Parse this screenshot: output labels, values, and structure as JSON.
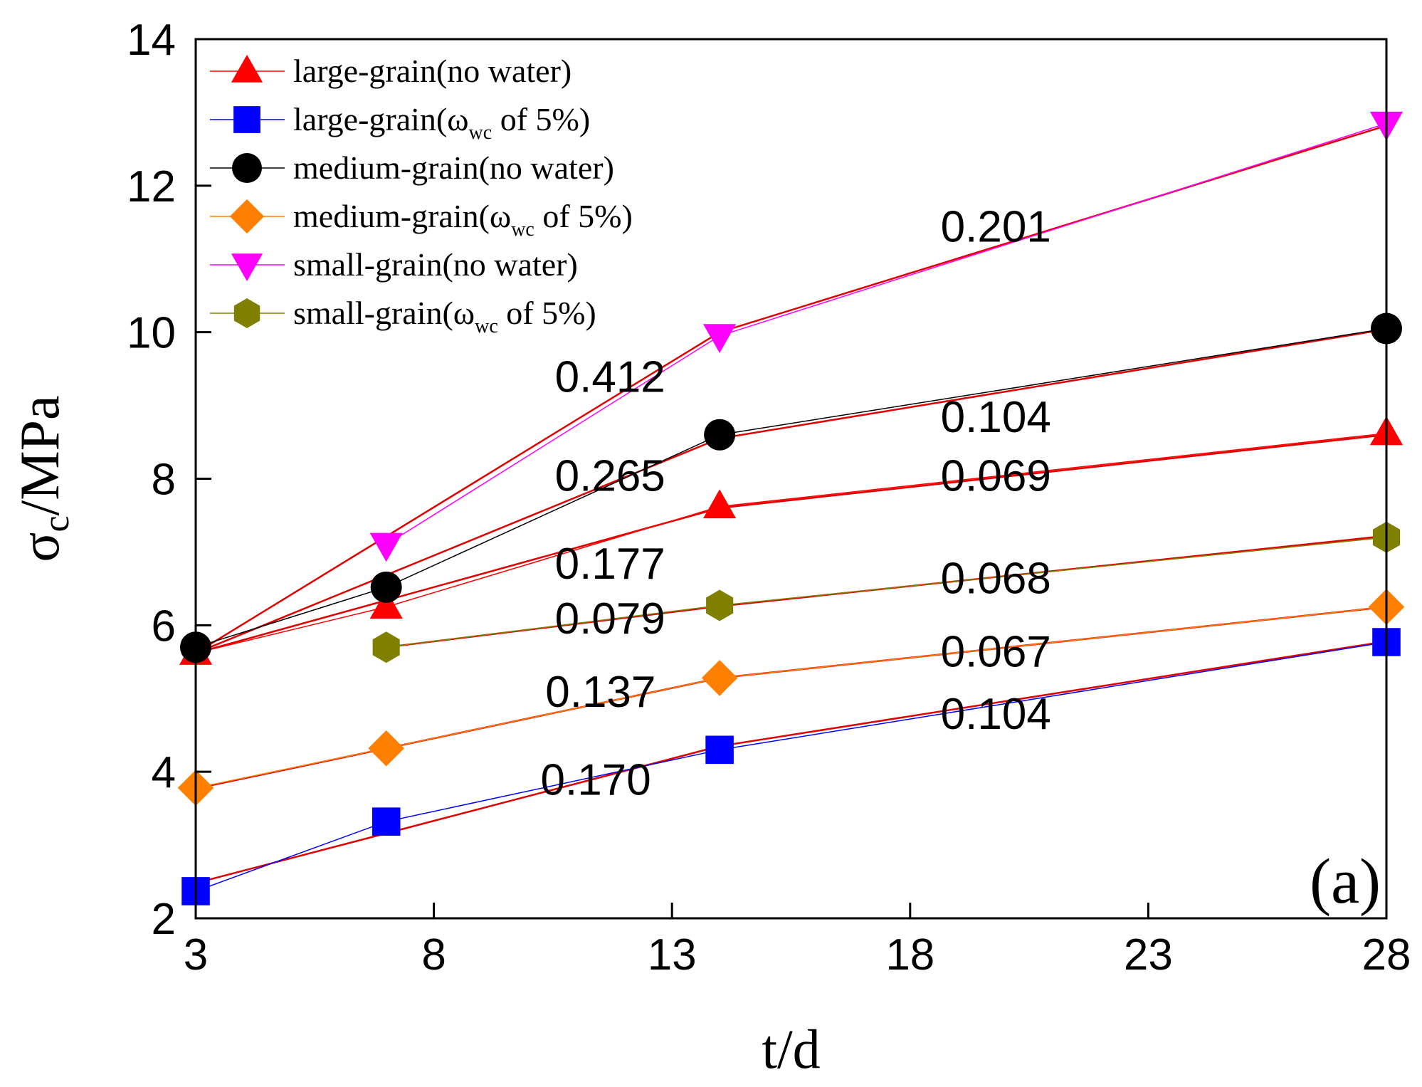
{
  "chart_data": {
    "type": "line",
    "panel_label": "(a)",
    "xlabel": "t/d",
    "ylabel": {
      "main": "σ",
      "sub": "c",
      "rest": "/MPa"
    },
    "xlim": [
      3,
      28
    ],
    "ylim": [
      2,
      14
    ],
    "xticks": [
      3,
      8,
      13,
      18,
      23,
      28
    ],
    "yticks": [
      2,
      4,
      6,
      8,
      10,
      12,
      14
    ],
    "grid": false,
    "legend_position": "top-left",
    "fit_color": "#e00000",
    "series": [
      {
        "name": "large-grain(no water)",
        "legend": {
          "before": "large-grain(no water)",
          "sub": "",
          "after": ""
        },
        "marker": "triangle-up",
        "color": "#ff0000",
        "x": [
          3,
          7,
          14,
          28
        ],
        "y": [
          5.62,
          6.25,
          7.62,
          8.62
        ]
      },
      {
        "name": "large-grain(ωwc of 5%)",
        "legend": {
          "before": "large-grain(ω",
          "sub": "wc",
          "after": " of 5%)"
        },
        "marker": "square",
        "color": "#0000ff",
        "x": [
          3,
          7,
          14,
          28
        ],
        "y": [
          2.37,
          3.32,
          4.3,
          5.77
        ]
      },
      {
        "name": "medium-grain(no water)",
        "legend": {
          "before": "medium-grain(no water)",
          "sub": "",
          "after": ""
        },
        "marker": "circle",
        "color": "#000000",
        "x": [
          3,
          7,
          14,
          28
        ],
        "y": [
          5.7,
          6.52,
          8.6,
          10.05
        ]
      },
      {
        "name": "medium-grain(ωwc of 5%)",
        "legend": {
          "before": "medium-grain(ω",
          "sub": "wc",
          "after": " of 5%)"
        },
        "marker": "diamond",
        "color": "#ff8000",
        "x": [
          3,
          7,
          14,
          28
        ],
        "y": [
          3.78,
          4.32,
          5.28,
          6.25
        ]
      },
      {
        "name": "small-grain(no water)",
        "legend": {
          "before": "small-grain(no water)",
          "sub": "",
          "after": ""
        },
        "marker": "triangle-down",
        "color": "#ff00ff",
        "x": [
          7,
          14,
          28
        ],
        "y": [
          7.1,
          9.95,
          12.85
        ]
      },
      {
        "name": "small-grain(ωwc of 5%)",
        "legend": {
          "before": "small-grain(ω",
          "sub": "wc",
          "after": " of 5%)"
        },
        "marker": "hexagon",
        "color": "#808000",
        "x": [
          7,
          14,
          28
        ],
        "y": [
          5.7,
          6.27,
          7.2
        ]
      }
    ],
    "fit_lines": [
      {
        "x": [
          3,
          14
        ],
        "y": [
          5.62,
          7.6
        ]
      },
      {
        "x": [
          14,
          28
        ],
        "y": [
          7.6,
          8.6
        ]
      },
      {
        "x": [
          3,
          14
        ],
        "y": [
          2.48,
          4.35
        ]
      },
      {
        "x": [
          14,
          28
        ],
        "y": [
          4.35,
          5.78
        ]
      },
      {
        "x": [
          3,
          14
        ],
        "y": [
          5.62,
          8.55
        ]
      },
      {
        "x": [
          14,
          28
        ],
        "y": [
          8.55,
          10.04
        ]
      },
      {
        "x": [
          3,
          14
        ],
        "y": [
          3.77,
          5.28
        ]
      },
      {
        "x": [
          14,
          28
        ],
        "y": [
          5.28,
          6.25
        ]
      },
      {
        "x": [
          3,
          14
        ],
        "y": [
          5.62,
          10.0
        ]
      },
      {
        "x": [
          14,
          28
        ],
        "y": [
          10.0,
          12.82
        ]
      },
      {
        "x": [
          7,
          14
        ],
        "y": [
          5.7,
          6.26
        ]
      },
      {
        "x": [
          14,
          28
        ],
        "y": [
          6.26,
          7.22
        ]
      }
    ],
    "slope_labels": [
      {
        "text": "0.201",
        "x": 19.8,
        "y": 11.45
      },
      {
        "text": "0.412",
        "x": 11.7,
        "y": 9.4
      },
      {
        "text": "0.104",
        "x": 19.8,
        "y": 8.85
      },
      {
        "text": "0.265",
        "x": 11.7,
        "y": 8.05
      },
      {
        "text": "0.069",
        "x": 19.8,
        "y": 8.05
      },
      {
        "text": "0.177",
        "x": 11.7,
        "y": 6.85
      },
      {
        "text": "0.068",
        "x": 19.8,
        "y": 6.65
      },
      {
        "text": "0.079",
        "x": 11.7,
        "y": 6.1
      },
      {
        "text": "0.067",
        "x": 19.8,
        "y": 5.65
      },
      {
        "text": "0.137",
        "x": 11.5,
        "y": 5.1
      },
      {
        "text": "0.104",
        "x": 19.8,
        "y": 4.8
      },
      {
        "text": "0.170",
        "x": 11.4,
        "y": 3.9
      }
    ]
  }
}
